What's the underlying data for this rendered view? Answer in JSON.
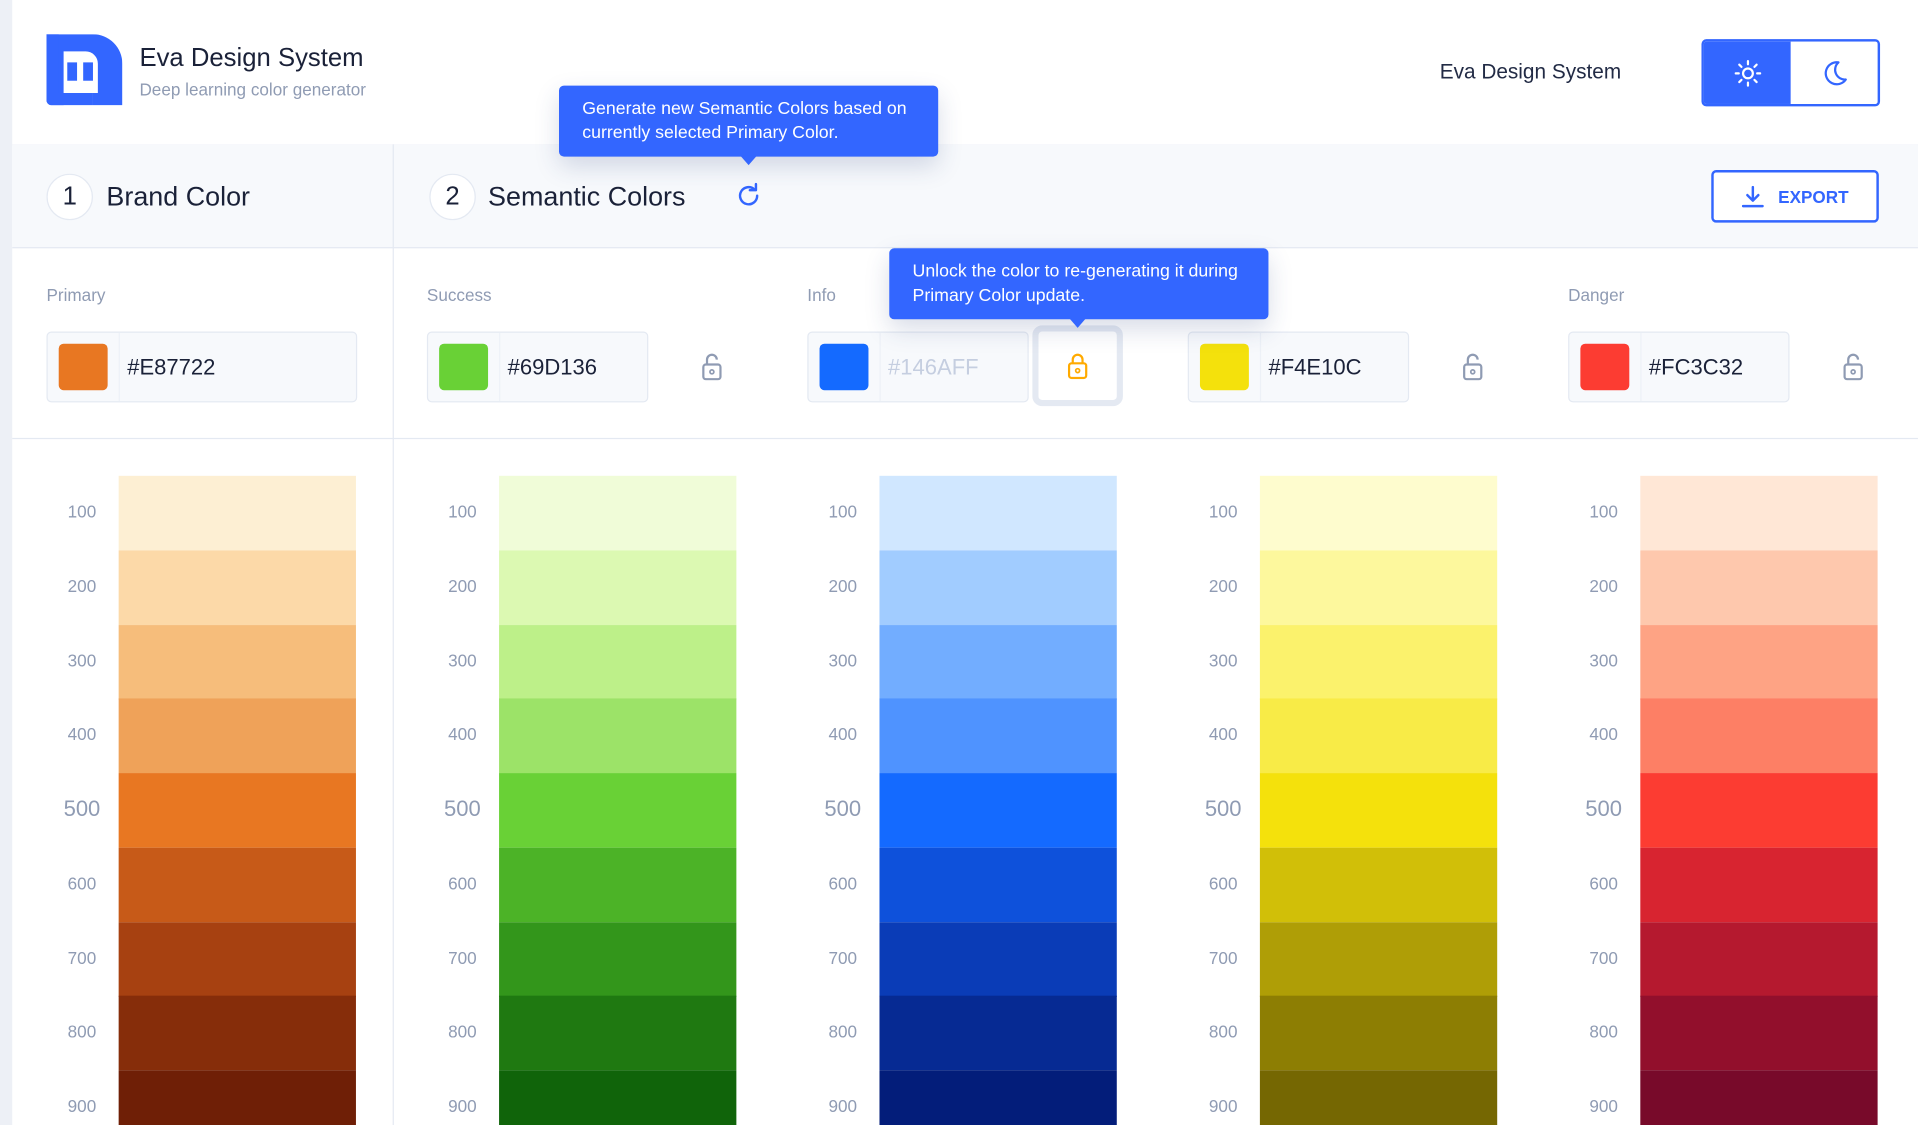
{
  "header": {
    "title": "Eva Design System",
    "subtitle": "Deep learning color generator",
    "right_title": "Eva Design System",
    "theme": {
      "active": "light",
      "icons": [
        "sun-icon",
        "moon-icon"
      ]
    }
  },
  "sections": {
    "brand": {
      "number": "1",
      "title": "Brand Color"
    },
    "semantic": {
      "number": "2",
      "title": "Semantic Colors"
    },
    "export_label": "EXPORT"
  },
  "tooltips": {
    "regenerate": "Generate new Semantic Colors based on currently selected Primary Color.",
    "unlock": "Unlock the color to re-generating it during Primary Color update."
  },
  "accent": "#3366FF",
  "shade_labels": [
    "100",
    "200",
    "300",
    "400",
    "500",
    "600",
    "700",
    "800",
    "900"
  ],
  "columns": [
    {
      "label": "Primary",
      "hex": "#E87722",
      "locked": null,
      "shades": [
        "#FDEFD3",
        "#FCD9A8",
        "#F6BD7B",
        "#EFA259",
        "#E87722",
        "#C75A18",
        "#A74111",
        "#862D0A",
        "#6F1F06"
      ]
    },
    {
      "label": "Success",
      "hex": "#69D136",
      "locked": false,
      "shades": [
        "#F0FCD8",
        "#DCF9B2",
        "#BDF089",
        "#9CE368",
        "#69D136",
        "#4CB327",
        "#33961B",
        "#1F7911",
        "#10640A"
      ]
    },
    {
      "label": "Info",
      "hex": "#146AFF",
      "locked": true,
      "shades": [
        "#D0E7FF",
        "#A1CCFF",
        "#72ADFF",
        "#4F93FF",
        "#146AFF",
        "#0E51DB",
        "#0A3CB7",
        "#062A93",
        "#031D7A"
      ]
    },
    {
      "label": "",
      "hex": "#F4E10C",
      "locked": false,
      "shades": [
        "#FEFCCE",
        "#FDF89D",
        "#FBF26C",
        "#F8EB47",
        "#F4E10C",
        "#D1BF08",
        "#AF9E06",
        "#8D7E03",
        "#756702"
      ]
    },
    {
      "label": "Danger",
      "hex": "#FC3C32",
      "locked": false,
      "shades": [
        "#FFE7D6",
        "#FEC8AD",
        "#FEA384",
        "#FD7F65",
        "#FC3C32",
        "#D82430",
        "#B5192F",
        "#920F2C",
        "#780A2A"
      ]
    }
  ]
}
